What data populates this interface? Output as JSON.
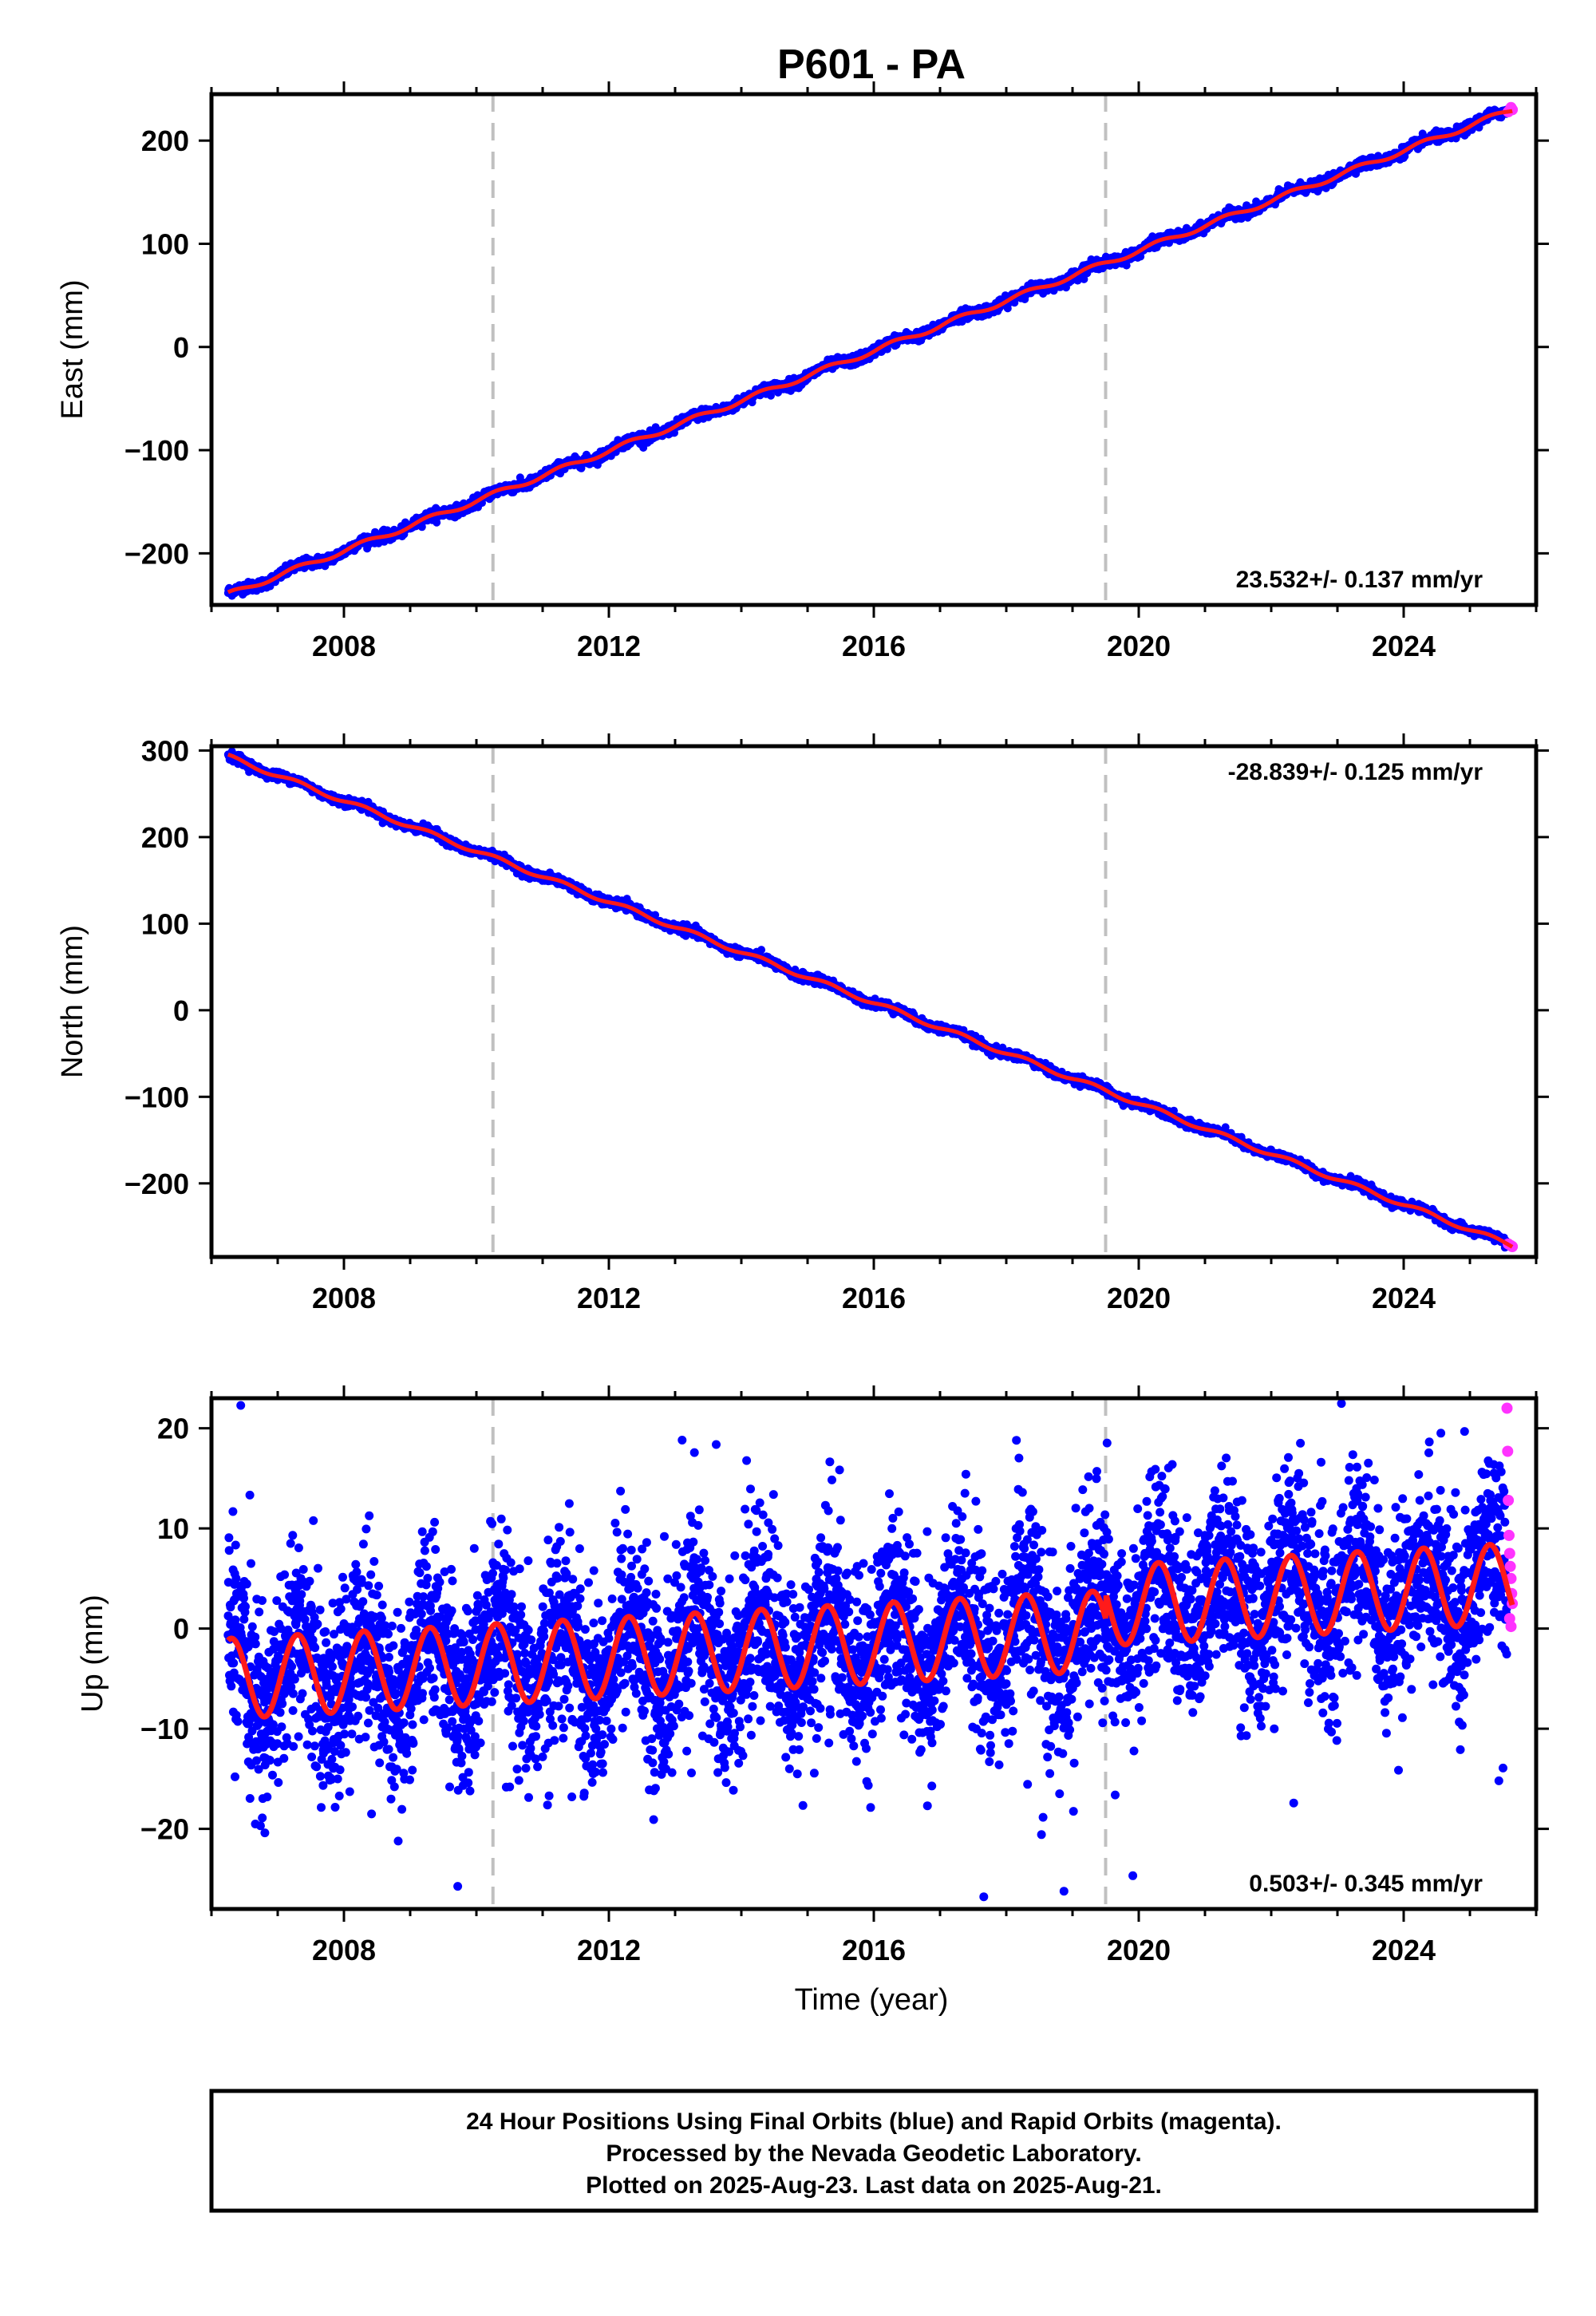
{
  "figure": {
    "title": "P601 - PA",
    "xlabel": "Time (year)",
    "footer": [
      "24 Hour Positions Using Final Orbits (blue) and Rapid Orbits (magenta).",
      "Processed by the Nevada Geodetic Laboratory.",
      "Plotted on 2025-Aug-23. Last data on 2025-Aug-21."
    ],
    "colors": {
      "final_orbits": "#0000ff",
      "rapid_orbits": "#ff33ff",
      "model": "#ff1a1a",
      "event_lines": "#c0c0c0",
      "frame": "#000000"
    }
  },
  "chart_data": [
    {
      "type": "scatter",
      "panel": "east",
      "ylabel": "East (mm)",
      "rate_label": "23.532+/- 0.137 mm/yr",
      "rate_position": "bottom-right",
      "xlim": [
        2006.0,
        2026.0
      ],
      "ylim": [
        -250,
        245
      ],
      "xticks": [
        2008,
        2012,
        2016,
        2020,
        2024
      ],
      "yticks": [
        -200,
        -100,
        0,
        100,
        200
      ],
      "event_lines_x": [
        2010.25,
        2019.5
      ],
      "start_year": 2006.25,
      "end_year": 2025.64,
      "start_value": -240,
      "end_value": 230,
      "rate_mm_per_yr": 23.532,
      "seasonal_amplitude": 2.5,
      "scatter_noise": 2.5,
      "rapid_points": [
        [
          2025.58,
          228
        ],
        [
          2025.62,
          232
        ],
        [
          2025.64,
          230
        ]
      ],
      "grid": false
    },
    {
      "type": "scatter",
      "panel": "north",
      "ylabel": "North (mm)",
      "rate_label": "-28.839+/- 0.125 mm/yr",
      "rate_position": "top-right",
      "xlim": [
        2006.0,
        2026.0
      ],
      "ylim": [
        -285,
        305
      ],
      "xticks": [
        2008,
        2012,
        2016,
        2020,
        2024
      ],
      "yticks": [
        -200,
        -100,
        0,
        100,
        200,
        300
      ],
      "event_lines_x": [
        2010.25,
        2019.5
      ],
      "start_year": 2006.25,
      "end_year": 2025.64,
      "start_value": 293,
      "end_value": -272,
      "rate_mm_per_yr": -28.839,
      "seasonal_amplitude": 2.5,
      "scatter_noise": 2.5,
      "rapid_points": [
        [
          2025.58,
          -270
        ],
        [
          2025.62,
          -272
        ],
        [
          2025.64,
          -273
        ]
      ],
      "grid": false
    },
    {
      "type": "scatter",
      "panel": "up",
      "ylabel": "Up (mm)",
      "rate_label": "0.503+/- 0.345 mm/yr",
      "rate_position": "bottom-right",
      "xlim": [
        2006.0,
        2026.0
      ],
      "ylim": [
        -28,
        23
      ],
      "xticks": [
        2008,
        2012,
        2016,
        2020,
        2024
      ],
      "yticks": [
        -20,
        -10,
        0,
        10,
        20
      ],
      "event_lines_x": [
        2010.25,
        2019.5
      ],
      "start_year": 2006.25,
      "end_year": 2025.64,
      "start_value": -5,
      "end_value": 2,
      "rate_mm_per_yr": 0.503,
      "seasonal_amplitude": 4.0,
      "scatter_noise": 4.5,
      "rapid_points": [
        [
          2025.56,
          22
        ],
        [
          2025.57,
          17.7
        ],
        [
          2025.58,
          12.8
        ],
        [
          2025.59,
          9.3
        ],
        [
          2025.6,
          7.5
        ],
        [
          2025.61,
          6.2
        ],
        [
          2025.62,
          5.0
        ],
        [
          2025.63,
          3.5
        ],
        [
          2025.64,
          2.5
        ],
        [
          2025.6,
          1.0
        ],
        [
          2025.62,
          0.2
        ]
      ],
      "grid": false
    }
  ]
}
